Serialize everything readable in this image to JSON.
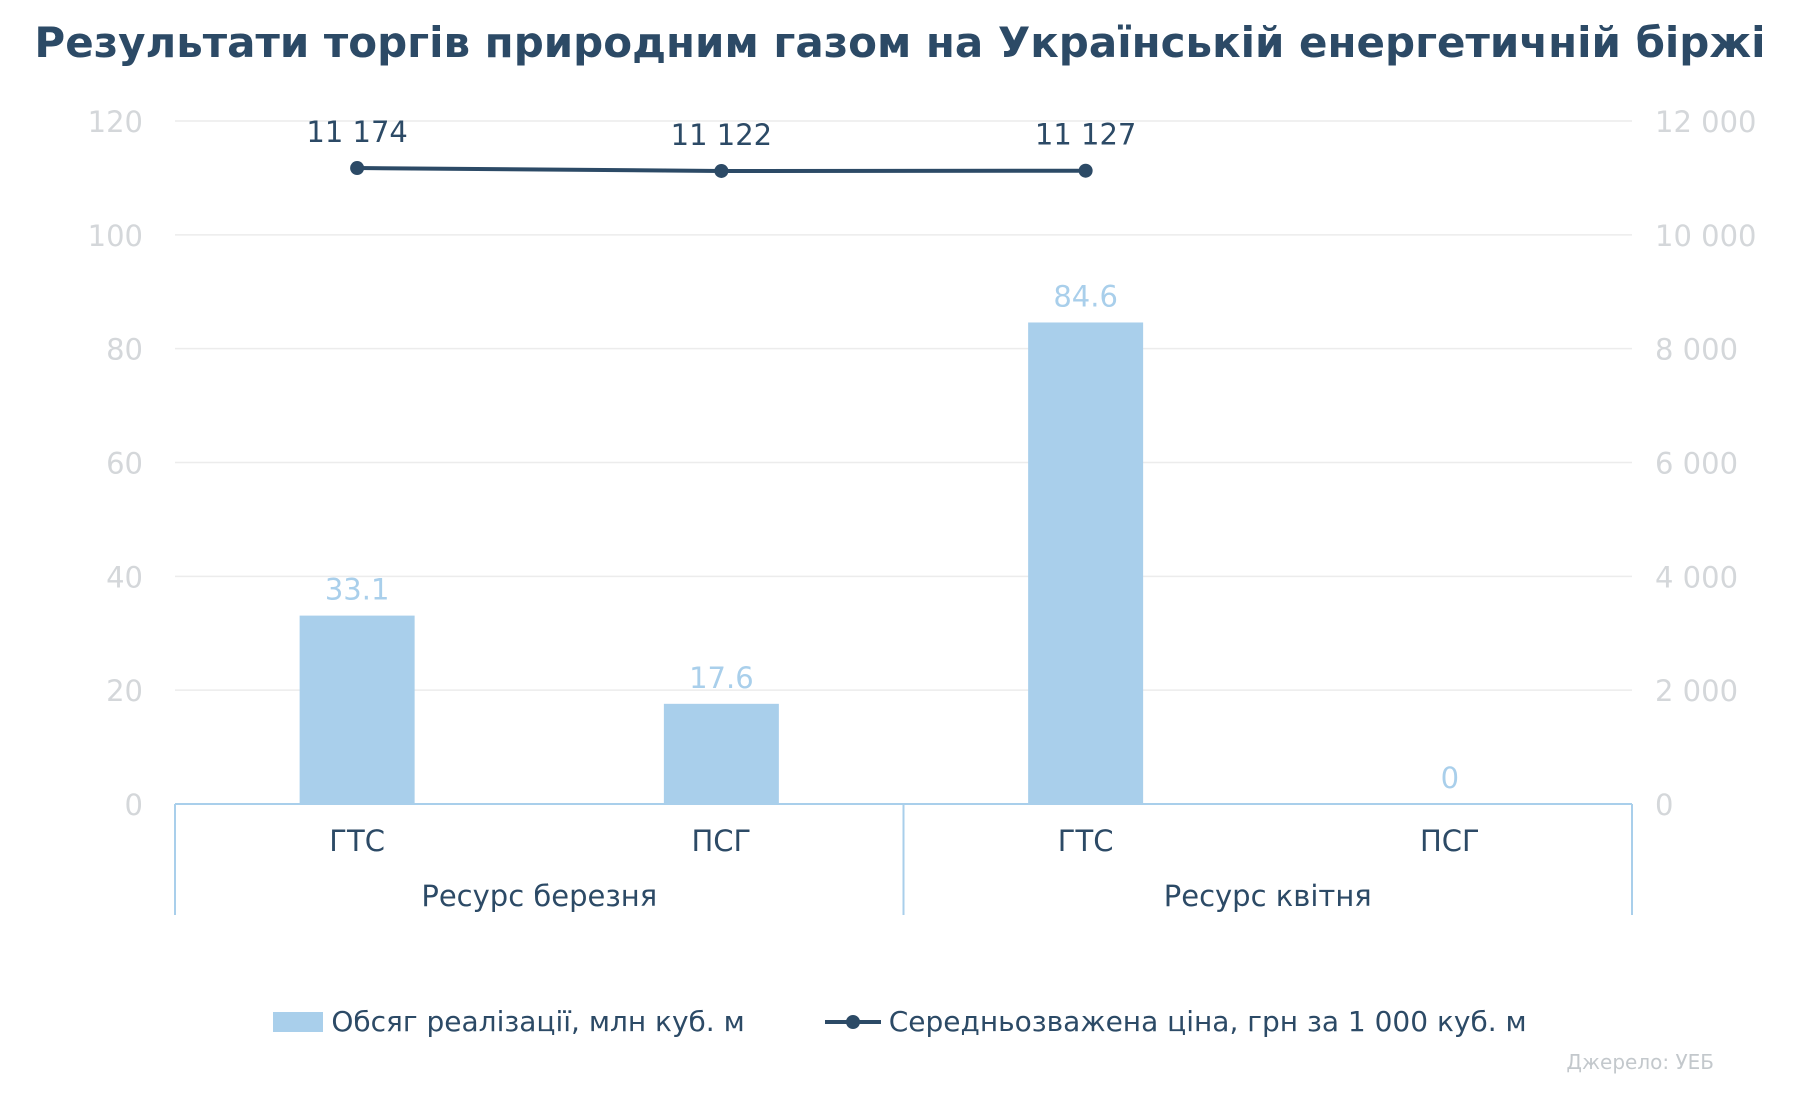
{
  "chart_data": {
    "type": "bar+line",
    "title": "Результати торгів природним газом на Українській енергетичній біржі",
    "categories": [
      "ГТС",
      "ПСГ",
      "ГТС",
      "ПСГ"
    ],
    "groups": [
      {
        "label": "Ресурс березня",
        "span": 2
      },
      {
        "label": "Ресурс квітня",
        "span": 2
      }
    ],
    "series": [
      {
        "name": "Обсяг реалізації, млн куб. м",
        "type": "bar",
        "axis": "left",
        "values": [
          33.1,
          17.6,
          84.6,
          0
        ],
        "labels": [
          "33.1",
          "17.6",
          "84.6",
          "0"
        ],
        "color": "#a9cfeb",
        "label_color": "#a9cfeb"
      },
      {
        "name": "Середньозважена ціна, грн за 1 000 куб. м",
        "type": "line",
        "axis": "right",
        "values": [
          11174,
          11122,
          11127,
          null
        ],
        "labels": [
          "11 174",
          "11 122",
          "11 127",
          ""
        ],
        "color": "#2c4a66",
        "label_color": "#2c4a66"
      }
    ],
    "y_left": {
      "min": 0,
      "max": 120,
      "ticks": [
        0,
        20,
        40,
        60,
        80,
        100,
        120
      ],
      "tick_labels": [
        "0",
        "20",
        "40",
        "60",
        "80",
        "100",
        "120"
      ]
    },
    "y_right": {
      "min": 0,
      "max": 12000,
      "ticks": [
        0,
        2000,
        4000,
        6000,
        8000,
        10000,
        12000
      ],
      "tick_labels": [
        "0",
        "2 000",
        "4 000",
        "6 000",
        "8 000",
        "10 000",
        "12 000"
      ]
    },
    "grid": true,
    "legend_position": "bottom"
  },
  "source_note": "Джерело: УЕБ",
  "colors": {
    "title": "#2c4a66",
    "axis_text": "#d4d7da",
    "category_text": "#2c4a66",
    "grid": "#ececec",
    "axis_frame": "#a9cfeb"
  }
}
